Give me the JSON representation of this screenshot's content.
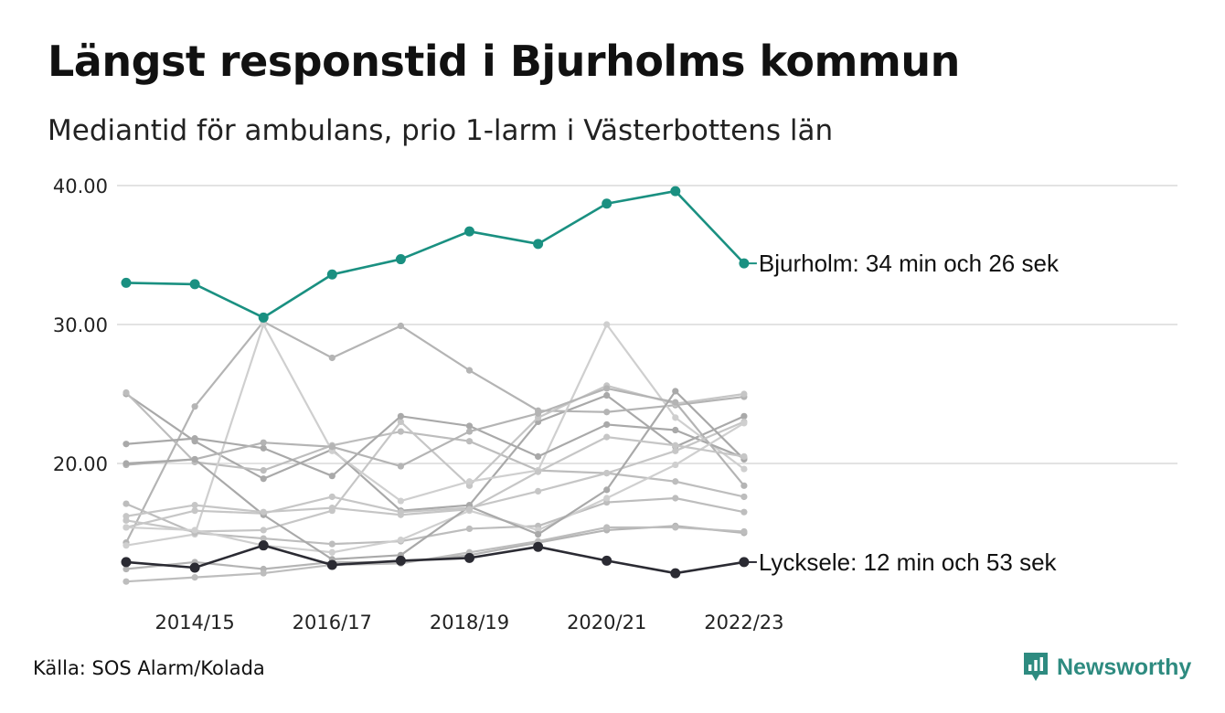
{
  "header": {
    "title": "Längst responstid i Bjurholms kommun",
    "subtitle": "Mediantid för ambulans, prio 1-larm i Västerbottens län"
  },
  "footer": {
    "source": "Källa: SOS Alarm/Kolada",
    "brand": "Newsworthy"
  },
  "colors": {
    "highlight": "#1a9081",
    "lowest": "#2b2b33",
    "others": [
      "#a9a9a9",
      "#b4b4b4",
      "#bdbdbd",
      "#c6c6c6",
      "#cfcfcf"
    ],
    "grid": "#e3e3e3",
    "brand": "#2e8b80"
  },
  "chart_data": {
    "type": "line",
    "x": [
      "2013/14",
      "2014/15",
      "2015/16",
      "2016/17",
      "2017/18",
      "2018/19",
      "2019/20",
      "2020/21",
      "2021/22",
      "2022/23"
    ],
    "x_tick_labels": [
      "2014/15",
      "2016/17",
      "2018/19",
      "2020/21",
      "2022/23"
    ],
    "y_tick_labels": [
      "40.00",
      "30.00",
      "20.00"
    ],
    "ylim": [
      10.5,
      40.5
    ],
    "grid": true,
    "series": [
      {
        "name": "Bjurholm",
        "role": "highlight",
        "label": "Bjurholm: 34 min och 26 sek",
        "values": [
          33.0,
          32.9,
          30.5,
          33.6,
          34.7,
          36.7,
          35.8,
          38.7,
          39.6,
          34.4
        ]
      },
      {
        "name": "Lycksele",
        "role": "lowest",
        "label": "Lycksele: 12 min och 53 sek",
        "values": [
          12.9,
          12.5,
          14.1,
          12.7,
          13.0,
          13.2,
          14.0,
          13.0,
          12.1,
          12.9
        ]
      },
      {
        "role": "other",
        "values": [
          25.0,
          21.6,
          18.9,
          21.0,
          16.6,
          17.0,
          23.0,
          24.9,
          21.2,
          23.4
        ]
      },
      {
        "role": "other",
        "values": [
          14.3,
          24.1,
          30.2,
          27.6,
          29.9,
          26.7,
          23.8,
          23.7,
          24.2,
          24.8
        ]
      },
      {
        "role": "other",
        "values": [
          25.1,
          20.1,
          19.5,
          21.3,
          22.3,
          21.6,
          19.5,
          19.3,
          18.7,
          17.6
        ]
      },
      {
        "role": "other",
        "values": [
          15.9,
          15.1,
          15.2,
          16.6,
          23.0,
          18.4,
          23.3,
          25.6,
          24.3,
          25.0
        ]
      },
      {
        "role": "other",
        "values": [
          14.1,
          14.9,
          30.0,
          20.9,
          17.3,
          18.7,
          19.5,
          30.0,
          23.3,
          19.6
        ]
      },
      {
        "role": "other",
        "values": [
          21.4,
          21.8,
          21.1,
          19.1,
          23.4,
          22.7,
          20.5,
          22.8,
          22.4,
          20.4
        ]
      },
      {
        "role": "other",
        "values": [
          19.9,
          20.3,
          21.5,
          21.2,
          19.8,
          22.3,
          23.6,
          25.4,
          24.4,
          18.4
        ]
      },
      {
        "role": "other",
        "values": [
          17.1,
          15.0,
          14.6,
          14.2,
          14.4,
          15.3,
          15.5,
          17.2,
          17.5,
          16.5
        ]
      },
      {
        "role": "other",
        "values": [
          15.4,
          16.6,
          16.4,
          17.6,
          16.5,
          16.8,
          18.0,
          19.3,
          20.9,
          23.0
        ]
      },
      {
        "role": "other",
        "values": [
          15.4,
          15.2,
          14.1,
          13.6,
          14.5,
          16.6,
          15.2,
          17.5,
          19.9,
          22.9
        ]
      },
      {
        "role": "other",
        "values": [
          20.0,
          20.3,
          16.3,
          13.1,
          13.4,
          16.9,
          14.9,
          18.1,
          25.2,
          20.3
        ]
      },
      {
        "role": "other",
        "values": [
          12.4,
          12.9,
          12.4,
          12.9,
          12.9,
          13.4,
          14.3,
          15.2,
          15.5,
          15.0
        ]
      },
      {
        "role": "other",
        "values": [
          11.5,
          11.8,
          12.1,
          12.7,
          12.8,
          13.6,
          14.4,
          15.4,
          15.4,
          15.1
        ]
      },
      {
        "role": "other",
        "values": [
          16.2,
          17.0,
          16.5,
          16.8,
          16.3,
          16.7,
          19.4,
          21.9,
          21.3,
          20.5
        ]
      }
    ]
  }
}
